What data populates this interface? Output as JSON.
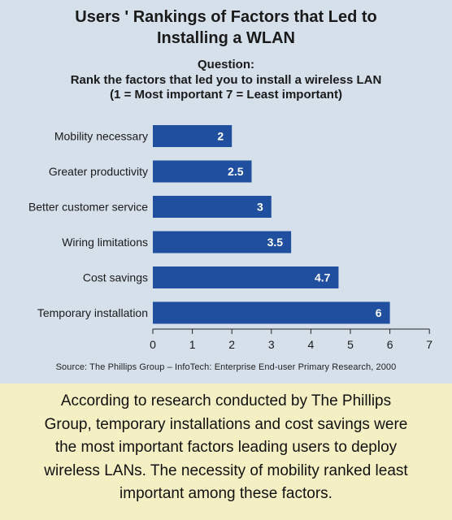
{
  "title_lines": [
    "Users ' Rankings of Factors that Led to",
    "Installing a WLAN"
  ],
  "question_lines": [
    "Question:",
    "Rank the factors that led you to install a wireless LAN",
    "(1 = Most important  7 = Least important)"
  ],
  "source": "Source: The Phillips Group – InfoTech: Enterprise End-user Primary Research, 2000",
  "caption_lines": [
    "According to research conducted by The Phillips",
    "Group, temporary installations and cost savings were",
    "the most important factors leading users to deploy",
    "wireless LANs. The necessity of mobility ranked least",
    "important among these factors."
  ],
  "colors": {
    "bar": "#1f4f9e",
    "panel": "#d5e0eb",
    "caption_bg": "#f4f0c4",
    "bar_label": "#ffffff"
  },
  "chart_data": {
    "type": "bar",
    "orientation": "horizontal",
    "categories": [
      "Mobility necessary",
      "Greater productivity",
      "Better customer service",
      "Wiring limitations",
      "Cost savings",
      "Temporary installation"
    ],
    "values": [
      2,
      2.5,
      3,
      3.5,
      4.7,
      6
    ],
    "value_labels": [
      "2",
      "2.5",
      "3",
      "3.5",
      "4.7",
      "6"
    ],
    "xlim": [
      0,
      7
    ],
    "xticks": [
      "0",
      "1",
      "2",
      "3",
      "4",
      "5",
      "6",
      "7"
    ],
    "grid": false
  }
}
